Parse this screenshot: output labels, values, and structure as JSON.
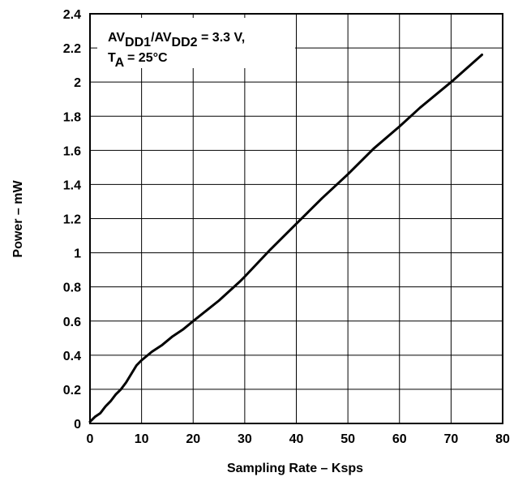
{
  "chart_data": {
    "type": "line",
    "title": "",
    "xlabel": "Sampling Rate – Ksps",
    "ylabel": "Power – mW",
    "xlim": [
      0,
      80
    ],
    "ylim": [
      0,
      2.4
    ],
    "x_ticks": [
      "0",
      "10",
      "20",
      "30",
      "40",
      "50",
      "60",
      "70",
      "80"
    ],
    "y_ticks": [
      "0",
      "0.2",
      "0.4",
      "0.6",
      "0.8",
      "1",
      "1.2",
      "1.4",
      "1.6",
      "1.8",
      "2",
      "2.2",
      "2.4"
    ],
    "grid": true,
    "legend": "none",
    "annotation": {
      "line1_a": "AV",
      "line1_sub1": "DD1",
      "line1_b": "/AV",
      "line1_sub2": "DD2",
      "line1_c": " = 3.3 V,",
      "line2_a": "T",
      "line2_sub": "A",
      "line2_b": " = 25°C"
    },
    "series": [
      {
        "color": "#000000",
        "x": [
          0,
          1,
          2,
          3,
          4,
          5,
          6,
          7,
          8,
          9,
          10,
          12,
          14,
          16,
          18,
          20,
          25,
          29,
          30,
          35,
          40,
          45,
          50,
          55,
          60,
          64,
          70,
          76
        ],
        "y": [
          0.01,
          0.04,
          0.06,
          0.1,
          0.13,
          0.17,
          0.2,
          0.24,
          0.29,
          0.34,
          0.37,
          0.42,
          0.46,
          0.51,
          0.55,
          0.6,
          0.72,
          0.83,
          0.86,
          1.02,
          1.17,
          1.32,
          1.46,
          1.61,
          1.74,
          1.85,
          2.0,
          2.16
        ]
      }
    ]
  }
}
